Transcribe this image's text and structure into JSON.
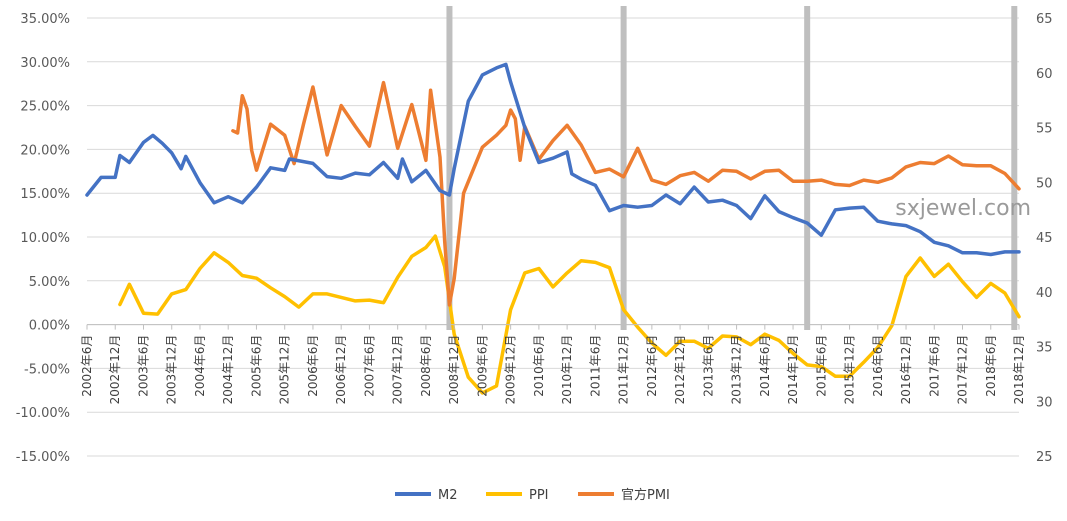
{
  "chart_data": {
    "type": "line",
    "x": [
      "2002年6月",
      "2002年12月",
      "2003年6月",
      "2003年12月",
      "2004年6月",
      "2004年12月",
      "2005年6月",
      "2005年12月",
      "2006年6月",
      "2006年12月",
      "2007年6月",
      "2007年12月",
      "2008年6月",
      "2008年12月",
      "2009年6月",
      "2009年12月",
      "2010年6月",
      "2010年12月",
      "2011年6月",
      "2011年12月",
      "2012年6月",
      "2012年12月",
      "2013年6月",
      "2013年12月",
      "2014年6月",
      "2014年12月",
      "2015年6月",
      "2015年12月",
      "2016年6月",
      "2016年12月",
      "2017年6月",
      "2017年12月",
      "2018年6月",
      "2018年12月"
    ],
    "xlim": [
      "2002-06",
      "2018-12"
    ],
    "y_left": {
      "ylim": [
        -15,
        35
      ],
      "ticks": [
        "-15.00%",
        "-10.00%",
        "-5.00%",
        "0.00%",
        "5.00%",
        "10.00%",
        "15.00%",
        "20.00%",
        "25.00%",
        "30.00%",
        "35.00%"
      ],
      "tick_values": [
        -15,
        -10,
        -5,
        0,
        5,
        10,
        15,
        20,
        25,
        30,
        35
      ]
    },
    "y_right": {
      "ylim": [
        25,
        65
      ],
      "ticks": [
        "25",
        "30",
        "35",
        "40",
        "45",
        "50",
        "55",
        "60",
        "65"
      ],
      "tick_values": [
        25,
        30,
        35,
        40,
        45,
        50,
        55,
        60,
        65
      ]
    },
    "markers": [
      "2008-11",
      "2011-12",
      "2015-03",
      "2018-11"
    ],
    "marker_color": "#bfbfbf",
    "legend_position": "bottom",
    "series": [
      {
        "name": "M2",
        "axis": "left",
        "color": "#4472c4",
        "points": [
          [
            "2002-06",
            14.8
          ],
          [
            "2002-09",
            16.8
          ],
          [
            "2002-12",
            16.8
          ],
          [
            "2003-01",
            19.3
          ],
          [
            "2003-03",
            18.5
          ],
          [
            "2003-06",
            20.8
          ],
          [
            "2003-08",
            21.6
          ],
          [
            "2003-10",
            20.7
          ],
          [
            "2003-12",
            19.6
          ],
          [
            "2004-02",
            17.8
          ],
          [
            "2004-03",
            19.2
          ],
          [
            "2004-06",
            16.2
          ],
          [
            "2004-09",
            13.9
          ],
          [
            "2004-12",
            14.6
          ],
          [
            "2005-03",
            13.9
          ],
          [
            "2005-06",
            15.7
          ],
          [
            "2005-09",
            17.9
          ],
          [
            "2005-12",
            17.6
          ],
          [
            "2006-01",
            18.9
          ],
          [
            "2006-06",
            18.4
          ],
          [
            "2006-09",
            16.9
          ],
          [
            "2006-12",
            16.7
          ],
          [
            "2007-03",
            17.3
          ],
          [
            "2007-06",
            17.1
          ],
          [
            "2007-09",
            18.5
          ],
          [
            "2007-12",
            16.7
          ],
          [
            "2008-01",
            18.9
          ],
          [
            "2008-03",
            16.3
          ],
          [
            "2008-06",
            17.6
          ],
          [
            "2008-09",
            15.3
          ],
          [
            "2008-11",
            14.8
          ],
          [
            "2008-12",
            17.8
          ],
          [
            "2009-03",
            25.5
          ],
          [
            "2009-06",
            28.5
          ],
          [
            "2009-09",
            29.3
          ],
          [
            "2009-11",
            29.7
          ],
          [
            "2009-12",
            27.7
          ],
          [
            "2010-03",
            22.5
          ],
          [
            "2010-06",
            18.5
          ],
          [
            "2010-09",
            19.0
          ],
          [
            "2010-12",
            19.7
          ],
          [
            "2011-01",
            17.2
          ],
          [
            "2011-03",
            16.6
          ],
          [
            "2011-06",
            15.9
          ],
          [
            "2011-09",
            13.0
          ],
          [
            "2011-12",
            13.6
          ],
          [
            "2012-03",
            13.4
          ],
          [
            "2012-06",
            13.6
          ],
          [
            "2012-09",
            14.8
          ],
          [
            "2012-12",
            13.8
          ],
          [
            "2013-03",
            15.7
          ],
          [
            "2013-06",
            14.0
          ],
          [
            "2013-09",
            14.2
          ],
          [
            "2013-12",
            13.6
          ],
          [
            "2014-03",
            12.1
          ],
          [
            "2014-06",
            14.7
          ],
          [
            "2014-09",
            12.9
          ],
          [
            "2014-12",
            12.2
          ],
          [
            "2015-03",
            11.6
          ],
          [
            "2015-06",
            10.2
          ],
          [
            "2015-09",
            13.1
          ],
          [
            "2015-12",
            13.3
          ],
          [
            "2016-03",
            13.4
          ],
          [
            "2016-06",
            11.8
          ],
          [
            "2016-09",
            11.5
          ],
          [
            "2016-12",
            11.3
          ],
          [
            "2017-03",
            10.6
          ],
          [
            "2017-06",
            9.4
          ],
          [
            "2017-09",
            9.0
          ],
          [
            "2017-12",
            8.2
          ],
          [
            "2018-03",
            8.2
          ],
          [
            "2018-06",
            8.0
          ],
          [
            "2018-09",
            8.3
          ],
          [
            "2018-12",
            8.3
          ]
        ]
      },
      {
        "name": "PPI",
        "axis": "left",
        "color": "#ffc000",
        "points": [
          [
            "2003-01",
            2.3
          ],
          [
            "2003-03",
            4.6
          ],
          [
            "2003-06",
            1.3
          ],
          [
            "2003-09",
            1.2
          ],
          [
            "2003-12",
            3.5
          ],
          [
            "2004-03",
            4.0
          ],
          [
            "2004-06",
            6.4
          ],
          [
            "2004-09",
            8.2
          ],
          [
            "2004-12",
            7.1
          ],
          [
            "2005-03",
            5.6
          ],
          [
            "2005-06",
            5.3
          ],
          [
            "2005-09",
            4.2
          ],
          [
            "2005-12",
            3.2
          ],
          [
            "2006-03",
            2.0
          ],
          [
            "2006-06",
            3.5
          ],
          [
            "2006-09",
            3.5
          ],
          [
            "2006-12",
            3.1
          ],
          [
            "2007-03",
            2.7
          ],
          [
            "2007-06",
            2.8
          ],
          [
            "2007-09",
            2.5
          ],
          [
            "2007-12",
            5.4
          ],
          [
            "2008-03",
            7.8
          ],
          [
            "2008-06",
            8.8
          ],
          [
            "2008-08",
            10.1
          ],
          [
            "2008-10",
            6.6
          ],
          [
            "2008-12",
            -1.1
          ],
          [
            "2009-03",
            -6.0
          ],
          [
            "2009-06",
            -7.8
          ],
          [
            "2009-09",
            -7.0
          ],
          [
            "2009-12",
            1.7
          ],
          [
            "2010-03",
            5.9
          ],
          [
            "2010-06",
            6.4
          ],
          [
            "2010-09",
            4.3
          ],
          [
            "2010-12",
            5.9
          ],
          [
            "2011-03",
            7.3
          ],
          [
            "2011-06",
            7.1
          ],
          [
            "2011-09",
            6.5
          ],
          [
            "2011-12",
            1.7
          ],
          [
            "2012-03",
            -0.3
          ],
          [
            "2012-06",
            -2.1
          ],
          [
            "2012-09",
            -3.5
          ],
          [
            "2012-12",
            -1.9
          ],
          [
            "2013-03",
            -1.9
          ],
          [
            "2013-06",
            -2.7
          ],
          [
            "2013-09",
            -1.3
          ],
          [
            "2013-12",
            -1.4
          ],
          [
            "2014-03",
            -2.3
          ],
          [
            "2014-06",
            -1.1
          ],
          [
            "2014-09",
            -1.8
          ],
          [
            "2014-12",
            -3.3
          ],
          [
            "2015-03",
            -4.6
          ],
          [
            "2015-06",
            -4.8
          ],
          [
            "2015-09",
            -5.9
          ],
          [
            "2015-12",
            -5.9
          ],
          [
            "2016-03",
            -4.3
          ],
          [
            "2016-06",
            -2.6
          ],
          [
            "2016-09",
            -0.1
          ],
          [
            "2016-12",
            5.5
          ],
          [
            "2017-03",
            7.6
          ],
          [
            "2017-06",
            5.5
          ],
          [
            "2017-09",
            6.9
          ],
          [
            "2017-12",
            4.9
          ],
          [
            "2018-03",
            3.1
          ],
          [
            "2018-06",
            4.7
          ],
          [
            "2018-09",
            3.6
          ],
          [
            "2018-12",
            0.9
          ]
        ]
      },
      {
        "name": "官方PMI",
        "axis": "right",
        "color": "#ed7d31",
        "points": [
          [
            "2005-01",
            54.7
          ],
          [
            "2005-02",
            54.5
          ],
          [
            "2005-03",
            57.9
          ],
          [
            "2005-04",
            56.7
          ],
          [
            "2005-05",
            52.9
          ],
          [
            "2005-06",
            51.1
          ],
          [
            "2005-09",
            55.3
          ],
          [
            "2005-12",
            54.3
          ],
          [
            "2006-02",
            51.7
          ],
          [
            "2006-04",
            55.3
          ],
          [
            "2006-06",
            58.7
          ],
          [
            "2006-09",
            52.5
          ],
          [
            "2006-12",
            57.0
          ],
          [
            "2007-03",
            55.1
          ],
          [
            "2007-06",
            53.3
          ],
          [
            "2007-09",
            59.1
          ],
          [
            "2007-12",
            53.1
          ],
          [
            "2008-03",
            57.1
          ],
          [
            "2008-06",
            52.0
          ],
          [
            "2008-07",
            58.4
          ],
          [
            "2008-09",
            52.3
          ],
          [
            "2008-10",
            44.6
          ],
          [
            "2008-11",
            38.8
          ],
          [
            "2008-12",
            41.2
          ],
          [
            "2009-02",
            49.0
          ],
          [
            "2009-06",
            53.2
          ],
          [
            "2009-09",
            54.3
          ],
          [
            "2009-11",
            55.2
          ],
          [
            "2009-12",
            56.6
          ],
          [
            "2010-01",
            55.8
          ],
          [
            "2010-02",
            52.0
          ],
          [
            "2010-03",
            55.1
          ],
          [
            "2010-06",
            52.1
          ],
          [
            "2010-09",
            53.8
          ],
          [
            "2010-12",
            55.2
          ],
          [
            "2011-03",
            53.4
          ],
          [
            "2011-06",
            50.9
          ],
          [
            "2011-09",
            51.2
          ],
          [
            "2011-12",
            50.5
          ],
          [
            "2012-03",
            53.1
          ],
          [
            "2012-06",
            50.2
          ],
          [
            "2012-09",
            49.8
          ],
          [
            "2012-12",
            50.6
          ],
          [
            "2013-03",
            50.9
          ],
          [
            "2013-06",
            50.1
          ],
          [
            "2013-09",
            51.1
          ],
          [
            "2013-12",
            51.0
          ],
          [
            "2014-03",
            50.3
          ],
          [
            "2014-06",
            51.0
          ],
          [
            "2014-09",
            51.1
          ],
          [
            "2014-12",
            50.1
          ],
          [
            "2015-03",
            50.1
          ],
          [
            "2015-06",
            50.2
          ],
          [
            "2015-09",
            49.8
          ],
          [
            "2015-12",
            49.7
          ],
          [
            "2016-03",
            50.2
          ],
          [
            "2016-06",
            50.0
          ],
          [
            "2016-09",
            50.4
          ],
          [
            "2016-12",
            51.4
          ],
          [
            "2017-03",
            51.8
          ],
          [
            "2017-06",
            51.7
          ],
          [
            "2017-09",
            52.4
          ],
          [
            "2017-12",
            51.6
          ],
          [
            "2018-03",
            51.5
          ],
          [
            "2018-06",
            51.5
          ],
          [
            "2018-09",
            50.8
          ],
          [
            "2018-12",
            49.4
          ]
        ]
      }
    ]
  },
  "watermark": "sxjewel.com"
}
